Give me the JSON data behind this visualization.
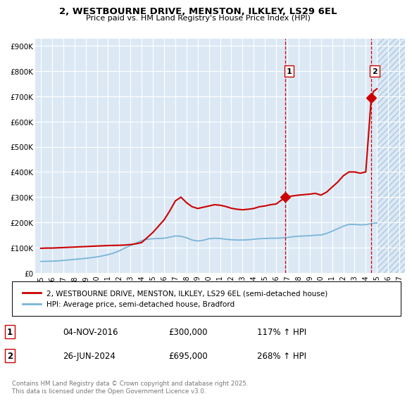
{
  "title_line1": "2, WESTBOURNE DRIVE, MENSTON, ILKLEY, LS29 6EL",
  "title_line2": "Price paid vs. HM Land Registry's House Price Index (HPI)",
  "plot_bg_color": "#dce9f5",
  "grid_color": "#ffffff",
  "hpi_color": "#7ab4d8",
  "price_color": "#cc0000",
  "dashed_line_color": "#cc0000",
  "ylim": [
    0,
    930000
  ],
  "xlim_start": 1994.5,
  "xlim_end": 2027.5,
  "yticks": [
    0,
    100000,
    200000,
    300000,
    400000,
    500000,
    600000,
    700000,
    800000,
    900000
  ],
  "ytick_labels": [
    "£0",
    "£100K",
    "£200K",
    "£300K",
    "£400K",
    "£500K",
    "£600K",
    "£700K",
    "£800K",
    "£900K"
  ],
  "xticks": [
    1995,
    1996,
    1997,
    1998,
    1999,
    2000,
    2001,
    2002,
    2003,
    2004,
    2005,
    2006,
    2007,
    2008,
    2009,
    2010,
    2011,
    2012,
    2013,
    2014,
    2015,
    2016,
    2017,
    2018,
    2019,
    2020,
    2021,
    2022,
    2023,
    2024,
    2025,
    2026,
    2027
  ],
  "legend_label_price": "2, WESTBOURNE DRIVE, MENSTON, ILKLEY, LS29 6EL (semi-detached house)",
  "legend_label_hpi": "HPI: Average price, semi-detached house, Bradford",
  "transaction1_date": "04-NOV-2016",
  "transaction1_price": "£300,000",
  "transaction1_hpi": "117% ↑ HPI",
  "transaction1_year": 2016.84,
  "transaction1_value": 300000,
  "transaction2_date": "26-JUN-2024",
  "transaction2_price": "£695,000",
  "transaction2_hpi": "268% ↑ HPI",
  "transaction2_year": 2024.49,
  "transaction2_value": 695000,
  "footer_text": "Contains HM Land Registry data © Crown copyright and database right 2025.\nThis data is licensed under the Open Government Licence v3.0.",
  "hatch_start": 2025.0,
  "hpi_data": [
    [
      1995.0,
      45000
    ],
    [
      1995.5,
      45500
    ],
    [
      1996.0,
      46000
    ],
    [
      1996.5,
      47000
    ],
    [
      1997.0,
      49000
    ],
    [
      1997.5,
      51000
    ],
    [
      1998.0,
      53000
    ],
    [
      1998.5,
      55000
    ],
    [
      1999.0,
      57000
    ],
    [
      1999.5,
      60000
    ],
    [
      2000.0,
      63000
    ],
    [
      2000.5,
      67000
    ],
    [
      2001.0,
      72000
    ],
    [
      2001.5,
      78000
    ],
    [
      2002.0,
      87000
    ],
    [
      2002.5,
      98000
    ],
    [
      2003.0,
      108000
    ],
    [
      2003.5,
      118000
    ],
    [
      2004.0,
      128000
    ],
    [
      2004.5,
      133000
    ],
    [
      2005.0,
      135000
    ],
    [
      2005.5,
      136000
    ],
    [
      2006.0,
      137000
    ],
    [
      2006.5,
      141000
    ],
    [
      2007.0,
      146000
    ],
    [
      2007.5,
      145000
    ],
    [
      2008.0,
      139000
    ],
    [
      2008.5,
      130000
    ],
    [
      2009.0,
      126000
    ],
    [
      2009.5,
      129000
    ],
    [
      2010.0,
      135000
    ],
    [
      2010.5,
      137000
    ],
    [
      2011.0,
      136000
    ],
    [
      2011.5,
      133000
    ],
    [
      2012.0,
      131000
    ],
    [
      2012.5,
      130000
    ],
    [
      2013.0,
      130000
    ],
    [
      2013.5,
      131000
    ],
    [
      2014.0,
      133000
    ],
    [
      2014.5,
      135000
    ],
    [
      2015.0,
      136000
    ],
    [
      2015.5,
      137000
    ],
    [
      2016.0,
      137000
    ],
    [
      2016.5,
      138000
    ],
    [
      2017.0,
      140000
    ],
    [
      2017.5,
      143000
    ],
    [
      2018.0,
      145000
    ],
    [
      2018.5,
      146000
    ],
    [
      2019.0,
      147000
    ],
    [
      2019.5,
      149000
    ],
    [
      2020.0,
      150000
    ],
    [
      2020.5,
      156000
    ],
    [
      2021.0,
      165000
    ],
    [
      2021.5,
      175000
    ],
    [
      2022.0,
      185000
    ],
    [
      2022.5,
      192000
    ],
    [
      2023.0,
      192000
    ],
    [
      2023.5,
      190000
    ],
    [
      2024.0,
      191000
    ],
    [
      2024.5,
      195000
    ],
    [
      2025.0,
      198000
    ]
  ],
  "price_data": [
    [
      1995.0,
      97000
    ],
    [
      1995.5,
      98000
    ],
    [
      1996.0,
      98000
    ],
    [
      1996.5,
      99000
    ],
    [
      1997.0,
      100000
    ],
    [
      1997.5,
      101000
    ],
    [
      1998.0,
      102000
    ],
    [
      1998.5,
      103000
    ],
    [
      1999.0,
      104000
    ],
    [
      1999.5,
      105000
    ],
    [
      2000.0,
      106000
    ],
    [
      2000.5,
      107000
    ],
    [
      2001.0,
      108000
    ],
    [
      2001.5,
      108500
    ],
    [
      2002.0,
      109000
    ],
    [
      2002.5,
      110000
    ],
    [
      2003.0,
      112000
    ],
    [
      2003.5,
      115000
    ],
    [
      2004.0,
      120000
    ],
    [
      2004.5,
      140000
    ],
    [
      2005.0,
      160000
    ],
    [
      2005.5,
      185000
    ],
    [
      2006.0,
      210000
    ],
    [
      2006.5,
      245000
    ],
    [
      2007.0,
      285000
    ],
    [
      2007.5,
      300000
    ],
    [
      2008.0,
      278000
    ],
    [
      2008.5,
      262000
    ],
    [
      2009.0,
      255000
    ],
    [
      2009.5,
      260000
    ],
    [
      2010.0,
      265000
    ],
    [
      2010.5,
      270000
    ],
    [
      2011.0,
      268000
    ],
    [
      2011.5,
      263000
    ],
    [
      2012.0,
      256000
    ],
    [
      2012.5,
      252000
    ],
    [
      2013.0,
      250000
    ],
    [
      2013.5,
      252000
    ],
    [
      2014.0,
      255000
    ],
    [
      2014.5,
      262000
    ],
    [
      2015.0,
      265000
    ],
    [
      2015.5,
      270000
    ],
    [
      2016.0,
      273000
    ],
    [
      2016.84,
      300000
    ],
    [
      2017.0,
      302000
    ],
    [
      2017.5,
      305000
    ],
    [
      2018.0,
      308000
    ],
    [
      2018.5,
      310000
    ],
    [
      2019.0,
      312000
    ],
    [
      2019.5,
      315000
    ],
    [
      2020.0,
      308000
    ],
    [
      2020.5,
      320000
    ],
    [
      2021.0,
      340000
    ],
    [
      2021.5,
      360000
    ],
    [
      2022.0,
      385000
    ],
    [
      2022.5,
      400000
    ],
    [
      2023.0,
      400000
    ],
    [
      2023.5,
      395000
    ],
    [
      2024.0,
      400000
    ],
    [
      2024.49,
      695000
    ],
    [
      2024.7,
      720000
    ],
    [
      2025.0,
      730000
    ]
  ]
}
